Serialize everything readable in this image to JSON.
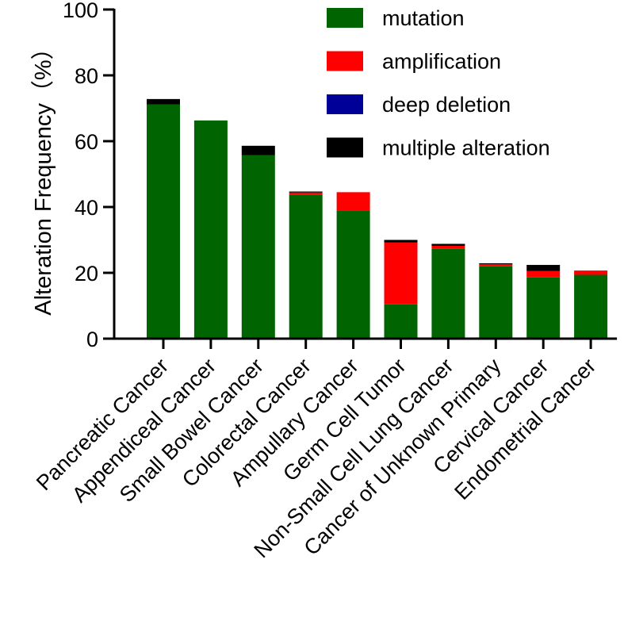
{
  "chart_data": {
    "type": "bar",
    "stacked": true,
    "title": "",
    "xlabel": "",
    "ylabel": "Alteration Frequency（%）",
    "ylim": [
      0,
      100
    ],
    "yticks": [
      0,
      20,
      40,
      60,
      80,
      100
    ],
    "categories": [
      "Pancreatic Cancer",
      "Appendiceal Cancer",
      "Small Bowel Cancer",
      "Colorectal Cancer",
      "Ampullary Cancer",
      "Germ Cell Tumor",
      "Non-Small Cell Lung Cancer",
      "Cancer of Unknown Primary",
      "Cervical Cancer",
      "Endometrial Cancer"
    ],
    "series": [
      {
        "name": "mutation",
        "color": "#006400",
        "values": [
          71.2,
          66.3,
          55.7,
          43.7,
          39.0,
          10.4,
          27.4,
          22.0,
          18.6,
          19.4
        ]
      },
      {
        "name": "amplification",
        "color": "#ff0000",
        "values": [
          0,
          0,
          0,
          0.7,
          5.5,
          18.8,
          0.8,
          0.6,
          2.0,
          1.3
        ]
      },
      {
        "name": "deep deletion",
        "color": "#000099",
        "values": [
          0,
          0,
          0,
          0,
          0,
          0,
          0,
          0,
          0,
          0
        ]
      },
      {
        "name": "multiple alteration",
        "color": "#000000",
        "values": [
          1.6,
          0,
          2.9,
          0.3,
          0,
          0.8,
          0.6,
          0.3,
          1.8,
          0
        ]
      }
    ],
    "legend_position": "top-right"
  }
}
